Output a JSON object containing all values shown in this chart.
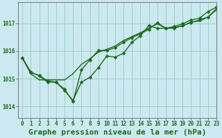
{
  "title": "Graphe pression niveau de la mer (hPa)",
  "background_color": "#cce8f0",
  "grid_color": "#99ccbb",
  "line_color": "#1a6b1a",
  "xlim": [
    -0.5,
    23
  ],
  "ylim": [
    1013.6,
    1017.75
  ],
  "yticks": [
    1014,
    1015,
    1016,
    1017
  ],
  "xticks": [
    0,
    1,
    2,
    3,
    4,
    5,
    6,
    7,
    8,
    9,
    10,
    11,
    12,
    13,
    14,
    15,
    16,
    17,
    18,
    19,
    20,
    21,
    22,
    23
  ],
  "series": [
    {
      "y": [
        1015.75,
        1015.25,
        1015.1,
        1014.88,
        1014.88,
        1014.58,
        1014.22,
        1014.88,
        1015.05,
        1015.4,
        1015.82,
        1015.78,
        1015.92,
        1016.32,
        1016.55,
        1016.92,
        1016.82,
        1016.82,
        1016.88,
        1016.98,
        1017.12,
        1017.18,
        1017.42,
        1017.58
      ],
      "marker": "D",
      "markersize": 2.5,
      "linewidth": 1.0
    },
    {
      "y": [
        1015.75,
        1015.22,
        1015.12,
        1014.92,
        1014.88,
        1014.62,
        1014.18,
        1015.32,
        1015.68,
        1016.02,
        1016.02,
        1016.12,
        1016.32,
        1016.48,
        1016.62,
        1016.78,
        1017.02,
        1016.82,
        1016.82,
        1016.92,
        1017.02,
        1017.12,
        1017.22,
        1017.52
      ],
      "marker": "D",
      "markersize": 2.5,
      "linewidth": 1.0
    },
    {
      "y": [
        1015.75,
        1015.18,
        1014.96,
        1014.96,
        1014.96,
        1014.96,
        1015.18,
        1015.52,
        1015.72,
        1015.96,
        1016.06,
        1016.18,
        1016.38,
        1016.52,
        1016.66,
        1016.82,
        1016.98,
        1016.82,
        1016.85,
        1016.9,
        1017.05,
        1017.08,
        1017.22,
        1017.48
      ],
      "marker": null,
      "markersize": 0,
      "linewidth": 1.0
    }
  ],
  "tick_fontsize": 5.5,
  "title_fontsize": 8.0,
  "title_color": "#1a6b1a",
  "tick_color": "#1a6b1a",
  "axis_color": "#666666"
}
